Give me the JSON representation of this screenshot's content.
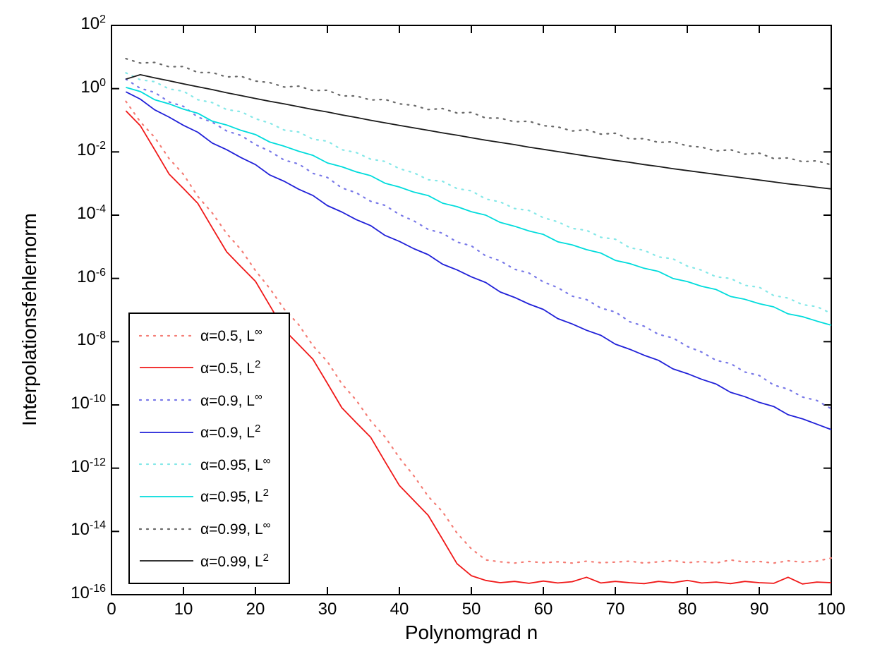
{
  "colors": {
    "axis": "#000000",
    "background": "#ffffff"
  },
  "chart_data": {
    "type": "line",
    "title": "",
    "xlabel": "Polynomgrad n",
    "ylabel": "Interpolationsfehlernorm",
    "x_range": [
      0,
      100
    ],
    "y_log10_range": [
      -16,
      2
    ],
    "y_scale": "log",
    "grid": false,
    "legend_position": "lower-left",
    "x_ticks": [
      0,
      10,
      20,
      30,
      40,
      50,
      60,
      70,
      80,
      90,
      100
    ],
    "y_tick_exponents": [
      "2",
      "0",
      "-2",
      "-4",
      "-6",
      "-8",
      "-10",
      "-12",
      "-14",
      "-16"
    ],
    "x": [
      2,
      4,
      6,
      8,
      10,
      12,
      14,
      16,
      18,
      20,
      22,
      24,
      26,
      28,
      30,
      32,
      34,
      36,
      38,
      40,
      42,
      44,
      46,
      48,
      50,
      52,
      54,
      56,
      58,
      60,
      62,
      64,
      66,
      68,
      70,
      72,
      74,
      76,
      78,
      80,
      82,
      84,
      86,
      88,
      90,
      92,
      94,
      96,
      98,
      100
    ],
    "series": [
      {
        "label_base": "α=0.5, L",
        "label_sup": "∞",
        "style": "dotted",
        "color": "#f47c74",
        "log10_values": [
          -0.4,
          -1.05,
          -1.54,
          -2.21,
          -2.71,
          -3.41,
          -3.93,
          -4.58,
          -5.09,
          -5.75,
          -6.32,
          -6.97,
          -7.46,
          -8.13,
          -8.63,
          -9.33,
          -9.85,
          -10.5,
          -11.01,
          -11.67,
          -12.24,
          -12.89,
          -13.38,
          -14.05,
          -14.55,
          -14.9,
          -14.96,
          -15.0,
          -14.95,
          -14.99,
          -14.96,
          -15.0,
          -14.94,
          -14.99,
          -14.97,
          -14.94,
          -15.0,
          -14.96,
          -14.92,
          -14.99,
          -14.95,
          -15.0,
          -14.9,
          -14.97,
          -14.95,
          -15.0,
          -14.93,
          -14.97,
          -14.94,
          -14.84
        ]
      },
      {
        "label_base": "α=0.5, L",
        "label_sup": "2",
        "style": "solid",
        "color": "#f01818",
        "log10_values": [
          -0.7,
          -1.17,
          -1.93,
          -2.7,
          -3.16,
          -3.63,
          -4.4,
          -5.16,
          -5.63,
          -6.09,
          -6.86,
          -7.63,
          -8.09,
          -8.56,
          -9.32,
          -10.09,
          -10.56,
          -11.02,
          -11.79,
          -12.55,
          -13.02,
          -13.49,
          -14.25,
          -15.02,
          -15.4,
          -15.55,
          -15.62,
          -15.58,
          -15.64,
          -15.57,
          -15.63,
          -15.59,
          -15.45,
          -15.63,
          -15.58,
          -15.62,
          -15.65,
          -15.58,
          -15.62,
          -15.55,
          -15.63,
          -15.6,
          -15.65,
          -15.58,
          -15.62,
          -15.64,
          -15.45,
          -15.66,
          -15.6,
          -15.62
        ]
      },
      {
        "label_base": "α=0.9, L",
        "label_sup": "∞",
        "style": "dotted",
        "color": "#7878e8",
        "log10_values": [
          0.3,
          0.01,
          -0.12,
          -0.42,
          -0.56,
          -0.9,
          -1.06,
          -1.34,
          -1.48,
          -1.77,
          -1.98,
          -2.26,
          -2.38,
          -2.68,
          -2.81,
          -3.14,
          -3.29,
          -3.56,
          -3.69,
          -3.98,
          -4.18,
          -4.45,
          -4.57,
          -4.85,
          -4.97,
          -5.29,
          -5.44,
          -5.71,
          -5.83,
          -6.11,
          -6.29,
          -6.56,
          -6.67,
          -6.94,
          -7.06,
          -7.37,
          -7.51,
          -7.77,
          -7.88,
          -8.15,
          -8.33,
          -8.59,
          -8.69,
          -8.96,
          -9.07,
          -9.37,
          -9.5,
          -9.75,
          -9.86,
          -10.12
        ]
      },
      {
        "label_base": "α=0.9, L",
        "label_sup": "2",
        "style": "solid",
        "color": "#2020d8",
        "log10_values": [
          -0.1,
          -0.33,
          -0.67,
          -0.9,
          -1.16,
          -1.38,
          -1.72,
          -1.93,
          -2.18,
          -2.4,
          -2.73,
          -2.93,
          -3.18,
          -3.38,
          -3.7,
          -3.9,
          -4.14,
          -4.33,
          -4.64,
          -4.83,
          -5.06,
          -5.25,
          -5.55,
          -5.73,
          -5.95,
          -6.13,
          -6.43,
          -6.6,
          -6.81,
          -6.98,
          -7.27,
          -7.44,
          -7.64,
          -7.8,
          -8.08,
          -8.24,
          -8.43,
          -8.59,
          -8.86,
          -9.01,
          -9.19,
          -9.34,
          -9.6,
          -9.74,
          -9.92,
          -10.05,
          -10.31,
          -10.44,
          -10.61,
          -10.78
        ]
      },
      {
        "label_base": "α=0.95, L",
        "label_sup": "∞",
        "style": "dotted",
        "color": "#84e8e8",
        "log10_values": [
          0.5,
          0.28,
          0.22,
          -0.01,
          -0.08,
          -0.35,
          -0.44,
          -0.66,
          -0.73,
          -0.95,
          -1.09,
          -1.31,
          -1.37,
          -1.6,
          -1.66,
          -1.93,
          -2.02,
          -2.23,
          -2.3,
          -2.53,
          -2.66,
          -2.88,
          -2.93,
          -3.16,
          -3.23,
          -3.49,
          -3.58,
          -3.79,
          -3.85,
          -4.08,
          -4.21,
          -4.42,
          -4.48,
          -4.7,
          -4.76,
          -5.03,
          -5.11,
          -5.32,
          -5.38,
          -5.61,
          -5.74,
          -5.95,
          -6.0,
          -6.22,
          -6.28,
          -6.54,
          -6.62,
          -6.83,
          -6.89,
          -7.11
        ]
      },
      {
        "label_base": "α=0.95, L",
        "label_sup": "2",
        "style": "solid",
        "color": "#00dcdc",
        "log10_values": [
          0.04,
          -0.09,
          -0.35,
          -0.48,
          -0.65,
          -0.78,
          -1.03,
          -1.15,
          -1.32,
          -1.45,
          -1.69,
          -1.82,
          -1.98,
          -2.11,
          -2.35,
          -2.47,
          -2.63,
          -2.75,
          -2.99,
          -3.11,
          -3.27,
          -3.38,
          -3.62,
          -3.73,
          -3.89,
          -4.0,
          -4.23,
          -4.35,
          -4.5,
          -4.61,
          -4.84,
          -4.94,
          -5.09,
          -5.2,
          -5.43,
          -5.53,
          -5.68,
          -5.78,
          -6.0,
          -6.1,
          -6.25,
          -6.35,
          -6.57,
          -6.66,
          -6.8,
          -6.9,
          -7.12,
          -7.21,
          -7.35,
          -7.48
        ]
      },
      {
        "label_base": "α=0.99, L",
        "label_sup": "∞",
        "style": "dotted",
        "color": "#686868",
        "log10_values": [
          0.95,
          0.81,
          0.83,
          0.69,
          0.7,
          0.51,
          0.51,
          0.37,
          0.39,
          0.24,
          0.19,
          0.05,
          0.08,
          -0.06,
          -0.05,
          -0.23,
          -0.23,
          -0.36,
          -0.34,
          -0.48,
          -0.53,
          -0.66,
          -0.63,
          -0.77,
          -0.75,
          -0.93,
          -0.93,
          -1.05,
          -1.03,
          -1.17,
          -1.21,
          -1.34,
          -1.3,
          -1.44,
          -1.41,
          -1.59,
          -1.58,
          -1.7,
          -1.68,
          -1.81,
          -1.85,
          -1.97,
          -1.93,
          -2.07,
          -2.04,
          -2.21,
          -2.19,
          -2.31,
          -2.28,
          -2.41
        ]
      },
      {
        "label_base": "α=0.99, L",
        "label_sup": "2",
        "style": "solid",
        "color": "#1a1a1a",
        "log10_values": [
          0.3,
          0.44,
          0.34,
          0.25,
          0.15,
          0.06,
          -0.03,
          -0.13,
          -0.22,
          -0.31,
          -0.4,
          -0.48,
          -0.57,
          -0.66,
          -0.74,
          -0.83,
          -0.91,
          -1.0,
          -1.08,
          -1.16,
          -1.24,
          -1.32,
          -1.4,
          -1.47,
          -1.55,
          -1.63,
          -1.7,
          -1.77,
          -1.85,
          -1.92,
          -1.99,
          -2.06,
          -2.13,
          -2.2,
          -2.27,
          -2.33,
          -2.4,
          -2.46,
          -2.53,
          -2.59,
          -2.65,
          -2.71,
          -2.77,
          -2.83,
          -2.89,
          -2.95,
          -3.01,
          -3.06,
          -3.12,
          -3.17
        ]
      }
    ]
  }
}
